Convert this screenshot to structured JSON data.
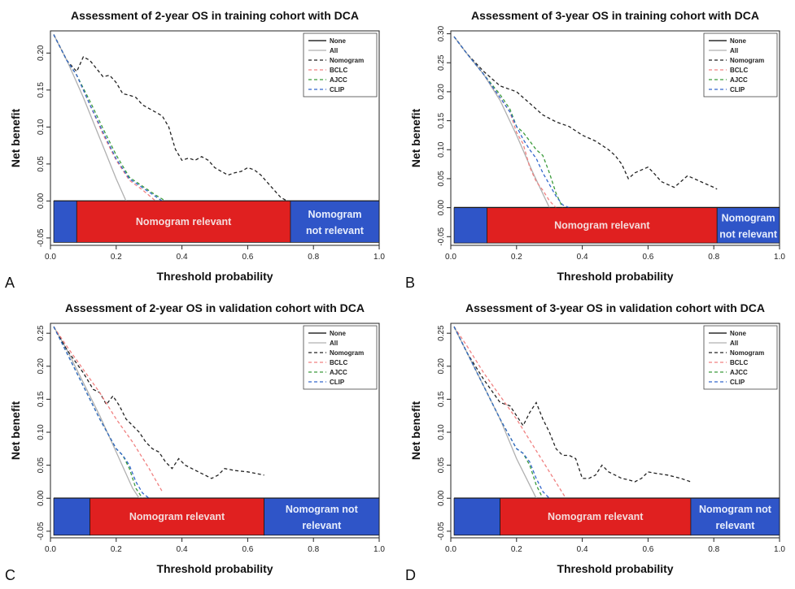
{
  "chart_data": [
    {
      "type": "line",
      "panel_label": "A",
      "title": "Assessment of 2-year OS in training cohort with DCA",
      "xlabel": "Threshold probability",
      "ylabel": "Net benefit",
      "xlim": [
        0,
        1.0
      ],
      "ylim": [
        -0.06,
        0.23
      ],
      "xticks": [
        "0.0",
        "0.2",
        "0.4",
        "0.6",
        "0.8",
        "1.0"
      ],
      "yticks": [
        "-0.05",
        "0.00",
        "0.05",
        "0.10",
        "0.15",
        "0.20"
      ],
      "legend_placement": "top-right",
      "legend": [
        "None",
        "All",
        "Nomogram",
        "BCLC",
        "AJCC",
        "CLIP"
      ],
      "series": [
        {
          "name": "None",
          "color": "#000000",
          "dash": "solid",
          "x": [
            0.01,
            1.0
          ],
          "y": [
            0,
            0
          ]
        },
        {
          "name": "All",
          "color": "#b0b0b0",
          "dash": "solid",
          "x": [
            0.01,
            0.05,
            0.1,
            0.15,
            0.2,
            0.23
          ],
          "y": [
            0.225,
            0.19,
            0.14,
            0.085,
            0.03,
            0.0
          ]
        },
        {
          "name": "Nomogram",
          "color": "#222222",
          "dash": "4,3",
          "x": [
            0.01,
            0.05,
            0.08,
            0.1,
            0.12,
            0.16,
            0.18,
            0.2,
            0.22,
            0.24,
            0.26,
            0.28,
            0.3,
            0.32,
            0.34,
            0.36,
            0.38,
            0.4,
            0.42,
            0.44,
            0.46,
            0.48,
            0.5,
            0.52,
            0.54,
            0.56,
            0.58,
            0.6,
            0.62,
            0.64,
            0.66,
            0.68,
            0.7,
            0.72
          ],
          "y": [
            0.225,
            0.19,
            0.175,
            0.195,
            0.19,
            0.168,
            0.17,
            0.16,
            0.145,
            0.143,
            0.14,
            0.13,
            0.125,
            0.12,
            0.115,
            0.1,
            0.07,
            0.055,
            0.058,
            0.055,
            0.06,
            0.055,
            0.045,
            0.04,
            0.035,
            0.038,
            0.04,
            0.045,
            0.042,
            0.035,
            0.025,
            0.015,
            0.005,
            0.0
          ]
        },
        {
          "name": "BCLC",
          "color": "#f08080",
          "dash": "4,3",
          "x": [
            0.01,
            0.05,
            0.08,
            0.12,
            0.16,
            0.2,
            0.24,
            0.28,
            0.32
          ],
          "y": [
            0.225,
            0.19,
            0.17,
            0.13,
            0.09,
            0.055,
            0.028,
            0.015,
            0.0
          ]
        },
        {
          "name": "AJCC",
          "color": "#3a9a3a",
          "dash": "4,3",
          "x": [
            0.01,
            0.05,
            0.08,
            0.12,
            0.16,
            0.2,
            0.24,
            0.28,
            0.32,
            0.35
          ],
          "y": [
            0.225,
            0.19,
            0.17,
            0.135,
            0.098,
            0.062,
            0.032,
            0.02,
            0.008,
            0.0
          ]
        },
        {
          "name": "CLIP",
          "color": "#3366cc",
          "dash": "4,3",
          "x": [
            0.01,
            0.05,
            0.08,
            0.12,
            0.16,
            0.2,
            0.24,
            0.28,
            0.32,
            0.34
          ],
          "y": [
            0.225,
            0.19,
            0.17,
            0.13,
            0.093,
            0.057,
            0.03,
            0.018,
            0.006,
            0.0
          ]
        }
      ],
      "regions": [
        {
          "from": 0.01,
          "to": 0.08,
          "color": "#2f55c8",
          "label": ""
        },
        {
          "from": 0.08,
          "to": 0.73,
          "color": "#e02020",
          "label": "Nomogram relevant"
        },
        {
          "from": 0.73,
          "to": 1.0,
          "color": "#2f55c8",
          "label": "Nomogram not relevant"
        }
      ],
      "region_label_lines": {
        "relevant": [
          "Nomogram relevant"
        ],
        "not_relevant": [
          "Nomogram",
          "not relevant"
        ]
      }
    },
    {
      "type": "line",
      "panel_label": "B",
      "title": "Assessment of 3-year OS in training cohort with DCA",
      "xlabel": "Threshold probability",
      "ylabel": "Net benefit",
      "xlim": [
        0,
        1.0
      ],
      "ylim": [
        -0.065,
        0.305
      ],
      "xticks": [
        "0.0",
        "0.2",
        "0.4",
        "0.6",
        "0.8",
        "1.0"
      ],
      "yticks": [
        "-0.05",
        "0.00",
        "0.05",
        "0.10",
        "0.15",
        "0.20",
        "0.25",
        "0.30"
      ],
      "legend_placement": "top-right",
      "legend": [
        "None",
        "All",
        "Nomogram",
        "BCLC",
        "AJCC",
        "CLIP"
      ],
      "series": [
        {
          "name": "None",
          "color": "#000000",
          "dash": "solid",
          "x": [
            0.01,
            1.0
          ],
          "y": [
            0,
            0
          ]
        },
        {
          "name": "All",
          "color": "#b0b0b0",
          "dash": "solid",
          "x": [
            0.01,
            0.05,
            0.1,
            0.15,
            0.2,
            0.25,
            0.3
          ],
          "y": [
            0.295,
            0.265,
            0.23,
            0.185,
            0.125,
            0.06,
            0.0
          ]
        },
        {
          "name": "Nomogram",
          "color": "#222222",
          "dash": "4,3",
          "x": [
            0.01,
            0.05,
            0.1,
            0.15,
            0.2,
            0.24,
            0.28,
            0.32,
            0.36,
            0.4,
            0.44,
            0.48,
            0.5,
            0.52,
            0.54,
            0.56,
            0.58,
            0.6,
            0.62,
            0.64,
            0.66,
            0.68,
            0.7,
            0.72,
            0.74,
            0.76,
            0.78,
            0.8,
            0.81
          ],
          "y": [
            0.295,
            0.265,
            0.235,
            0.21,
            0.2,
            0.18,
            0.16,
            0.148,
            0.14,
            0.125,
            0.115,
            0.1,
            0.09,
            0.075,
            0.05,
            0.06,
            0.065,
            0.07,
            0.058,
            0.045,
            0.04,
            0.035,
            0.045,
            0.055,
            0.05,
            0.045,
            0.04,
            0.035,
            0.032
          ]
        },
        {
          "name": "BCLC",
          "color": "#f08080",
          "dash": "4,3",
          "x": [
            0.01,
            0.05,
            0.1,
            0.15,
            0.18,
            0.2,
            0.22,
            0.24,
            0.26,
            0.28,
            0.3,
            0.32
          ],
          "y": [
            0.295,
            0.265,
            0.23,
            0.19,
            0.165,
            0.13,
            0.11,
            0.07,
            0.045,
            0.03,
            0.012,
            0.0
          ]
        },
        {
          "name": "AJCC",
          "color": "#3a9a3a",
          "dash": "4,3",
          "x": [
            0.01,
            0.05,
            0.1,
            0.15,
            0.18,
            0.2,
            0.22,
            0.24,
            0.26,
            0.28,
            0.3,
            0.32,
            0.34
          ],
          "y": [
            0.295,
            0.265,
            0.23,
            0.195,
            0.17,
            0.14,
            0.13,
            0.115,
            0.1,
            0.09,
            0.06,
            0.025,
            0.0
          ]
        },
        {
          "name": "CLIP",
          "color": "#3366cc",
          "dash": "4,3",
          "x": [
            0.01,
            0.05,
            0.1,
            0.15,
            0.18,
            0.2,
            0.22,
            0.24,
            0.26,
            0.28,
            0.3,
            0.32,
            0.34,
            0.36
          ],
          "y": [
            0.295,
            0.265,
            0.23,
            0.19,
            0.165,
            0.14,
            0.118,
            0.1,
            0.085,
            0.06,
            0.04,
            0.02,
            0.005,
            0.0
          ]
        }
      ],
      "regions": [
        {
          "from": 0.01,
          "to": 0.11,
          "color": "#2f55c8",
          "label": ""
        },
        {
          "from": 0.11,
          "to": 0.81,
          "color": "#e02020",
          "label": "Nomogram relevant"
        },
        {
          "from": 0.81,
          "to": 1.0,
          "color": "#2f55c8",
          "label": "Nomogram not relevant"
        }
      ],
      "region_label_lines": {
        "relevant": [
          "Nomogram relevant"
        ],
        "not_relevant": [
          "Nomogram",
          "not relevant"
        ]
      }
    },
    {
      "type": "line",
      "panel_label": "C",
      "title": "Assessment of 2-year OS in validation cohort with DCA",
      "xlabel": "Threshold probability",
      "ylabel": "Net benefit",
      "xlim": [
        0,
        1.0
      ],
      "ylim": [
        -0.06,
        0.265
      ],
      "xticks": [
        "0.0",
        "0.2",
        "0.4",
        "0.6",
        "0.8",
        "1.0"
      ],
      "yticks": [
        "-0.05",
        "0.00",
        "0.05",
        "0.10",
        "0.15",
        "0.20",
        "0.25"
      ],
      "legend_placement": "top-right",
      "legend": [
        "None",
        "All",
        "Nomogram",
        "BCLC",
        "AJCC",
        "CLIP"
      ],
      "series": [
        {
          "name": "None",
          "color": "#000000",
          "dash": "solid",
          "x": [
            0.01,
            1.0
          ],
          "y": [
            0,
            0
          ]
        },
        {
          "name": "All",
          "color": "#b0b0b0",
          "dash": "solid",
          "x": [
            0.01,
            0.05,
            0.1,
            0.15,
            0.2,
            0.25,
            0.27
          ],
          "y": [
            0.26,
            0.225,
            0.175,
            0.125,
            0.07,
            0.015,
            0.0
          ]
        },
        {
          "name": "Nomogram",
          "color": "#222222",
          "dash": "4,3",
          "x": [
            0.01,
            0.05,
            0.1,
            0.13,
            0.15,
            0.17,
            0.19,
            0.21,
            0.23,
            0.25,
            0.27,
            0.29,
            0.31,
            0.33,
            0.35,
            0.37,
            0.39,
            0.41,
            0.43,
            0.45,
            0.47,
            0.49,
            0.51,
            0.53,
            0.56,
            0.6,
            0.65
          ],
          "y": [
            0.26,
            0.225,
            0.19,
            0.165,
            0.16,
            0.142,
            0.155,
            0.14,
            0.12,
            0.11,
            0.1,
            0.085,
            0.075,
            0.07,
            0.055,
            0.045,
            0.06,
            0.05,
            0.045,
            0.04,
            0.035,
            0.03,
            0.035,
            0.045,
            0.042,
            0.04,
            0.035
          ]
        },
        {
          "name": "BCLC",
          "color": "#f08080",
          "dash": "4,3",
          "x": [
            0.01,
            0.05,
            0.1,
            0.15,
            0.2,
            0.25,
            0.3,
            0.34
          ],
          "y": [
            0.26,
            0.23,
            0.195,
            0.16,
            0.12,
            0.085,
            0.045,
            0.01
          ]
        },
        {
          "name": "AJCC",
          "color": "#3a9a3a",
          "dash": "4,3",
          "x": [
            0.01,
            0.05,
            0.1,
            0.15,
            0.2,
            0.22,
            0.24,
            0.26,
            0.28
          ],
          "y": [
            0.26,
            0.22,
            0.17,
            0.12,
            0.075,
            0.065,
            0.045,
            0.015,
            0.0
          ]
        },
        {
          "name": "CLIP",
          "color": "#3366cc",
          "dash": "4,3",
          "x": [
            0.01,
            0.05,
            0.1,
            0.15,
            0.2,
            0.22,
            0.24,
            0.26,
            0.28,
            0.3
          ],
          "y": [
            0.26,
            0.22,
            0.17,
            0.12,
            0.075,
            0.065,
            0.05,
            0.025,
            0.008,
            0.0
          ]
        }
      ],
      "regions": [
        {
          "from": 0.01,
          "to": 0.12,
          "color": "#2f55c8",
          "label": ""
        },
        {
          "from": 0.12,
          "to": 0.65,
          "color": "#e02020",
          "label": "Nomogram relevant"
        },
        {
          "from": 0.65,
          "to": 1.0,
          "color": "#2f55c8",
          "label": "Nomogram not relevant"
        }
      ],
      "region_label_lines": {
        "relevant": [
          "Nomogram relevant"
        ],
        "not_relevant": [
          "Nomogram not",
          "relevant"
        ]
      }
    },
    {
      "type": "line",
      "panel_label": "D",
      "title": "Assessment of 3-year OS in validation cohort with DCA",
      "xlabel": "Threshold probability",
      "ylabel": "Net benefit",
      "xlim": [
        0,
        1.0
      ],
      "ylim": [
        -0.06,
        0.265
      ],
      "xticks": [
        "0.0",
        "0.2",
        "0.4",
        "0.6",
        "0.8",
        "1.0"
      ],
      "yticks": [
        "-0.05",
        "0.00",
        "0.05",
        "0.10",
        "0.15",
        "0.20",
        "0.25"
      ],
      "legend_placement": "top-right",
      "legend": [
        "None",
        "All",
        "Nomogram",
        "BCLC",
        "AJCC",
        "CLIP"
      ],
      "series": [
        {
          "name": "None",
          "color": "#000000",
          "dash": "solid",
          "x": [
            0.01,
            1.0
          ],
          "y": [
            0,
            0
          ]
        },
        {
          "name": "All",
          "color": "#b0b0b0",
          "dash": "solid",
          "x": [
            0.01,
            0.05,
            0.1,
            0.15,
            0.2,
            0.25,
            0.26
          ],
          "y": [
            0.26,
            0.22,
            0.17,
            0.12,
            0.06,
            0.01,
            0.0
          ]
        },
        {
          "name": "Nomogram",
          "color": "#222222",
          "dash": "4,3",
          "x": [
            0.01,
            0.05,
            0.1,
            0.15,
            0.18,
            0.2,
            0.22,
            0.24,
            0.26,
            0.28,
            0.3,
            0.32,
            0.34,
            0.36,
            0.38,
            0.4,
            0.42,
            0.44,
            0.46,
            0.48,
            0.5,
            0.52,
            0.54,
            0.56,
            0.58,
            0.6,
            0.62,
            0.66,
            0.7,
            0.73
          ],
          "y": [
            0.26,
            0.22,
            0.18,
            0.145,
            0.14,
            0.125,
            0.11,
            0.13,
            0.145,
            0.12,
            0.1,
            0.075,
            0.065,
            0.065,
            0.06,
            0.03,
            0.03,
            0.035,
            0.05,
            0.04,
            0.035,
            0.03,
            0.028,
            0.025,
            0.03,
            0.04,
            0.038,
            0.035,
            0.03,
            0.025
          ]
        },
        {
          "name": "BCLC",
          "color": "#f08080",
          "dash": "4,3",
          "x": [
            0.01,
            0.05,
            0.1,
            0.15,
            0.2,
            0.25,
            0.3,
            0.35
          ],
          "y": [
            0.26,
            0.23,
            0.19,
            0.155,
            0.12,
            0.08,
            0.04,
            0.0
          ]
        },
        {
          "name": "AJCC",
          "color": "#3a9a3a",
          "dash": "4,3",
          "x": [
            0.01,
            0.05,
            0.1,
            0.15,
            0.2,
            0.22,
            0.24,
            0.26,
            0.28
          ],
          "y": [
            0.26,
            0.22,
            0.17,
            0.12,
            0.075,
            0.068,
            0.05,
            0.02,
            0.0
          ]
        },
        {
          "name": "CLIP",
          "color": "#3366cc",
          "dash": "4,3",
          "x": [
            0.01,
            0.05,
            0.1,
            0.15,
            0.2,
            0.22,
            0.24,
            0.26,
            0.28,
            0.3
          ],
          "y": [
            0.26,
            0.22,
            0.17,
            0.12,
            0.075,
            0.068,
            0.055,
            0.03,
            0.01,
            0.0
          ]
        }
      ],
      "regions": [
        {
          "from": 0.01,
          "to": 0.15,
          "color": "#2f55c8",
          "label": ""
        },
        {
          "from": 0.15,
          "to": 0.73,
          "color": "#e02020",
          "label": "Nomogram relevant"
        },
        {
          "from": 0.73,
          "to": 1.0,
          "color": "#2f55c8",
          "label": "Nomogram not relevant"
        }
      ],
      "region_label_lines": {
        "relevant": [
          "Nomogram relevant"
        ],
        "not_relevant": [
          "Nomogram not",
          "relevant"
        ]
      }
    }
  ]
}
